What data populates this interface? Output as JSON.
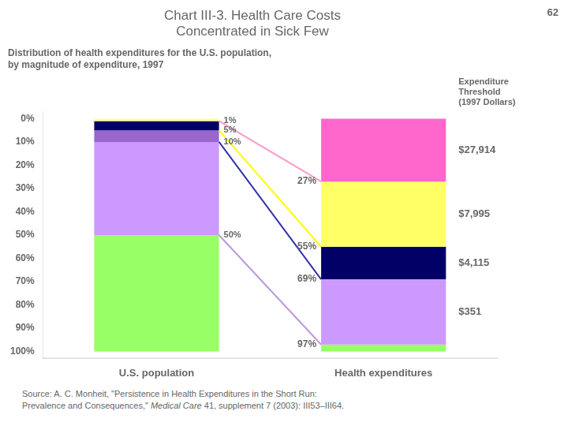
{
  "chart_data": {
    "type": "bar",
    "stacked": true,
    "title": "Chart III-3. Health Care Costs\nConcentrated in Sick Few",
    "subtitle": "Distribution of health expenditures for the U.S. population,\nby magnitude of expenditure, 1997",
    "page_number": "62",
    "categories": [
      "U.S. population",
      "Health expenditures"
    ],
    "series": [
      {
        "values": [
          1,
          27
        ],
        "colors": [
          "#FFFF99",
          "#FF66CC"
        ]
      },
      {
        "values": [
          4,
          28
        ],
        "colors": [
          "#000066",
          "#FFFF66"
        ]
      },
      {
        "values": [
          5,
          14
        ],
        "colors": [
          "#9966CC",
          "#000066"
        ]
      },
      {
        "values": [
          40,
          28
        ],
        "colors": [
          "#CC99FF",
          "#CC99FF"
        ]
      },
      {
        "values": [
          50,
          3
        ],
        "colors": [
          "#99FF66",
          "#99FF66"
        ]
      }
    ],
    "ylim": [
      103,
      -3
    ],
    "yticks": [
      {
        "value": 0,
        "label": "0%"
      },
      {
        "value": 10,
        "label": "10%"
      },
      {
        "value": 20,
        "label": "20%"
      },
      {
        "value": 30,
        "label": "30%"
      },
      {
        "value": 40,
        "label": "40%"
      },
      {
        "value": 50,
        "label": "50%"
      },
      {
        "value": 60,
        "label": "60%"
      },
      {
        "value": 70,
        "label": "70%"
      },
      {
        "value": 80,
        "label": "80%"
      },
      {
        "value": 90,
        "label": "90%"
      },
      {
        "value": 100,
        "label": "100%"
      }
    ],
    "grid": false,
    "connectors": [
      {
        "from": 1,
        "to": 27,
        "color": "#FF99CC"
      },
      {
        "from": 5,
        "to": 55,
        "color": "#FFFF00"
      },
      {
        "from": 10,
        "to": 69,
        "color": "#3333AA"
      },
      {
        "from": 50,
        "to": 97,
        "color": "#BB99DD"
      }
    ],
    "population_boundary_labels": [
      {
        "y": 1,
        "text": "1%"
      },
      {
        "y": 5,
        "text": "5%"
      },
      {
        "y": 10,
        "text": "10%"
      },
      {
        "y": 50,
        "text": "50%"
      }
    ],
    "expenditure_boundary_labels": [
      {
        "y": 27,
        "text": "27%"
      },
      {
        "y": 55,
        "text": "55%"
      },
      {
        "y": 69,
        "text": "69%"
      },
      {
        "y": 97,
        "text": "97%"
      }
    ],
    "threshold_labels": [
      {
        "y": 13.5,
        "text": "$27,914"
      },
      {
        "y": 41,
        "text": "$7,995"
      },
      {
        "y": 62,
        "text": "$4,115"
      },
      {
        "y": 83,
        "text": "$351"
      }
    ],
    "threshold_header": "Expenditure\nThreshold\n(1997 Dollars)",
    "source": {
      "line1": "Source: A. C. Monheit, \"Persistence in Health Expenditures in the Short Run:",
      "line2": [
        "Prevalence and Consequences,\" ",
        "Medical Care",
        " 41, supplement 7 (2003): III53–III64."
      ]
    }
  }
}
